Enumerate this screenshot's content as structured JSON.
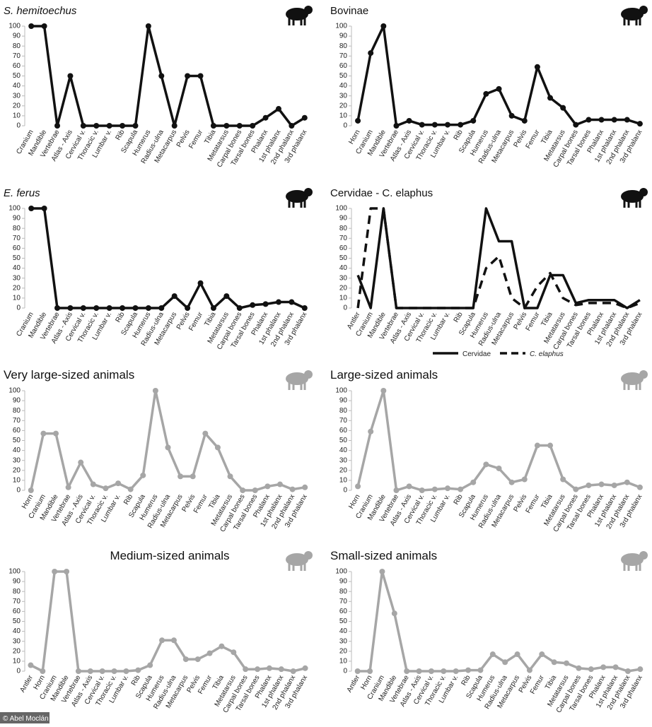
{
  "credit": "© Abel Moclán",
  "chart_data": [
    {
      "type": "line",
      "title": "S. hemitoechus",
      "title_italic": true,
      "color": "#111111",
      "markers": true,
      "categories": [
        "Cranium",
        "Mandible",
        "Vertebrae",
        "Atlas - Axis",
        "Cervical v.",
        "Thoracic v.",
        "Lumbar v.",
        "Rib",
        "Scapula",
        "Humerus",
        "Radius-ulna",
        "Metacarpus",
        "Pelvis",
        "Femur",
        "Tibia",
        "Metatarsus",
        "Carpal bones",
        "Tarsal bones",
        "Phalanx",
        "1st phalanx",
        "2nd phalanx",
        "3rd phalanx"
      ],
      "values": [
        100,
        100,
        0,
        50,
        0,
        0,
        0,
        0,
        0,
        100,
        50,
        0,
        50,
        50,
        0,
        0,
        0,
        0,
        8,
        17,
        0,
        8
      ],
      "ylim": [
        0,
        100
      ],
      "yticks": [
        0,
        10,
        20,
        30,
        40,
        50,
        60,
        70,
        80,
        90,
        100
      ]
    },
    {
      "type": "line",
      "title": "Bovinae",
      "title_italic": false,
      "color": "#111111",
      "markers": true,
      "categories": [
        "Horn",
        "Cranium",
        "Mandible",
        "Vertebrae",
        "Atlas - Axis",
        "Cervical v.",
        "Thoracic v.",
        "Lumbar v.",
        "Rib",
        "Scapula",
        "Humerus",
        "Radius-ulna",
        "Metacarpus",
        "Pelvis",
        "Femur",
        "Tibia",
        "Metatarsus",
        "Carpal bones",
        "Tarsal bones",
        "Phalanx",
        "1st phalanx",
        "2nd phalanx",
        "3rd phalanx"
      ],
      "values": [
        5,
        73,
        100,
        0,
        5,
        1,
        1,
        1,
        1,
        5,
        32,
        37,
        10,
        5,
        59,
        28,
        18,
        1,
        6,
        6,
        6,
        6,
        2
      ],
      "ylim": [
        0,
        100
      ],
      "yticks": [
        0,
        10,
        20,
        30,
        40,
        50,
        60,
        70,
        80,
        90,
        100
      ]
    },
    {
      "type": "line",
      "title": "E. ferus",
      "title_italic": true,
      "color": "#111111",
      "markers": true,
      "categories": [
        "Cranium",
        "Mandible",
        "Vertebrae",
        "Atlas - Axis",
        "Cervical v.",
        "Thoracic v.",
        "Lumbar v.",
        "Rib",
        "Scapula",
        "Humerus",
        "Radius-ulna",
        "Metacarpus",
        "Pelvis",
        "Femur",
        "Tibia",
        "Metatarsus",
        "Carpal bones",
        "Tarsal bones",
        "Phalanx",
        "1st phalanx",
        "2nd phalanx",
        "3rd phalanx"
      ],
      "values": [
        100,
        100,
        0,
        0,
        0,
        0,
        0,
        0,
        0,
        0,
        0,
        12,
        0,
        25,
        0,
        12,
        0,
        3,
        4,
        6,
        6,
        0
      ],
      "ylim": [
        0,
        100
      ],
      "yticks": [
        0,
        10,
        20,
        30,
        40,
        50,
        60,
        70,
        80,
        90,
        100
      ]
    },
    {
      "type": "line",
      "title": "Cervidae - C. elaphus",
      "title_italic": false,
      "markers": false,
      "categories": [
        "Antler",
        "Cranium",
        "Mandible",
        "Vertebrae",
        "Atlas - Axis",
        "Cervical v.",
        "Thoracic v.",
        "Lumbar v.",
        "Rib",
        "Scapula",
        "Humerus",
        "Radius-ulna",
        "Metacarpus",
        "Pelvis",
        "Femur",
        "Tibia",
        "Metatarsus",
        "Carpal bones",
        "Tarsal bones",
        "Phalanx",
        "1st phalanx",
        "2nd phalanx",
        "3rd phalanx"
      ],
      "series": [
        {
          "name": "Cervidae",
          "color": "#111111",
          "dashed": false,
          "values": [
            33,
            0,
            100,
            0,
            0,
            0,
            0,
            0,
            0,
            0,
            100,
            67,
            67,
            0,
            0,
            33,
            33,
            5,
            8,
            8,
            8,
            0,
            8
          ]
        },
        {
          "name": "C. elaphus",
          "color": "#111111",
          "dashed": true,
          "values": [
            0,
            100,
            100,
            0,
            0,
            0,
            0,
            0,
            0,
            0,
            40,
            52,
            10,
            0,
            22,
            35,
            10,
            3,
            5,
            5,
            5,
            0,
            5
          ]
        }
      ],
      "ylim": [
        0,
        100
      ],
      "yticks": [
        0,
        10,
        20,
        30,
        40,
        50,
        60,
        70,
        80,
        90,
        100
      ]
    },
    {
      "type": "line",
      "title": "Very large-sized animals",
      "title_italic": false,
      "color": "#a6a6a6",
      "markers": true,
      "categories": [
        "Horn",
        "Cranium",
        "Mandible",
        "Vertebrae",
        "Atlas - Axis",
        "Cervical v.",
        "Thoracic v.",
        "Lumbar v.",
        "Rib",
        "Scapula",
        "Humerus",
        "Radius-ulna",
        "Metacarpus",
        "Pelvis",
        "Femur",
        "Tibia",
        "Metatarsus",
        "Carpal bones",
        "Tarsal bones",
        "Phalanx",
        "1st phalanx",
        "2nd phalanx",
        "3rd phalanx"
      ],
      "values": [
        0,
        57,
        57,
        3,
        28,
        6,
        2,
        7,
        1,
        15,
        100,
        43,
        14,
        14,
        57,
        43,
        14,
        0,
        0,
        4,
        6,
        1,
        3
      ],
      "ylim": [
        0,
        100
      ],
      "yticks": [
        0,
        10,
        20,
        30,
        40,
        50,
        60,
        70,
        80,
        90,
        100
      ]
    },
    {
      "type": "line",
      "title": "Large-sized animals",
      "title_italic": false,
      "color": "#a6a6a6",
      "markers": true,
      "categories": [
        "Horn",
        "Cranium",
        "Mandible",
        "Vertebrae",
        "Atlas - Axis",
        "Cervical v.",
        "Thoracic v.",
        "Lumbar v.",
        "Rib",
        "Scapula",
        "Humerus",
        "Radius-ulna",
        "Metacarpus",
        "Pelvis",
        "Femur",
        "Tibia",
        "Metatarsus",
        "Carpal bones",
        "Tarsal bones",
        "Phalanx",
        "1st phalanx",
        "2nd phalanx",
        "3rd phalanx"
      ],
      "values": [
        4,
        59,
        100,
        0,
        4,
        0,
        1,
        2,
        1,
        8,
        26,
        22,
        8,
        11,
        45,
        45,
        11,
        1,
        5,
        6,
        5,
        8,
        3
      ],
      "ylim": [
        0,
        100
      ],
      "yticks": [
        0,
        10,
        20,
        30,
        40,
        50,
        60,
        70,
        80,
        90,
        100
      ]
    },
    {
      "type": "line",
      "title": "Medium-sized animals",
      "title_italic": false,
      "color": "#a6a6a6",
      "markers": true,
      "categories": [
        "Antler",
        "Horn",
        "Cranium",
        "Mandible",
        "Vertebrae",
        "Atlas - Axis",
        "Cervical v.",
        "Thoracic v.",
        "Lumbar v.",
        "Rib",
        "Scapula",
        "Humerus",
        "Radius-ulna",
        "Metacarpus",
        "Pelvis",
        "Femur",
        "Tibia",
        "Metatarsus",
        "Carpal bones",
        "Tarsal bones",
        "Phalanx",
        "1st phalanx",
        "2nd phalanx",
        "3rd phalanx"
      ],
      "values": [
        6,
        0,
        100,
        100,
        0,
        0,
        0,
        0,
        0,
        1,
        6,
        31,
        31,
        12,
        12,
        18,
        25,
        19,
        2,
        2,
        3,
        2,
        0,
        3
      ],
      "ylim": [
        0,
        100
      ],
      "yticks": [
        0,
        10,
        20,
        30,
        40,
        50,
        60,
        70,
        80,
        90,
        100
      ]
    },
    {
      "type": "line",
      "title": "Small-sized animals",
      "title_italic": false,
      "color": "#a6a6a6",
      "markers": true,
      "categories": [
        "Antler",
        "Horn",
        "Cranium",
        "Mandible",
        "Vertebrae",
        "Atlas - Axis",
        "Cervical v.",
        "Thoracic v.",
        "Lumbar v.",
        "Rib",
        "Scapula",
        "Humerus",
        "Radius-ulna",
        "Metacarpus",
        "Pelvis",
        "Femur",
        "Tibia",
        "Metatarsus",
        "Carpal bones",
        "Tarsal bones",
        "Phalanx",
        "1st phalanx",
        "2nd phalanx",
        "3rd phalanx"
      ],
      "values": [
        0,
        0,
        100,
        58,
        0,
        0,
        0,
        0,
        0,
        1,
        1,
        17,
        9,
        17,
        1,
        17,
        9,
        8,
        3,
        2,
        4,
        4,
        0,
        2
      ],
      "ylim": [
        0,
        100
      ],
      "yticks": [
        0,
        10,
        20,
        30,
        40,
        50,
        60,
        70,
        80,
        90,
        100
      ]
    }
  ]
}
